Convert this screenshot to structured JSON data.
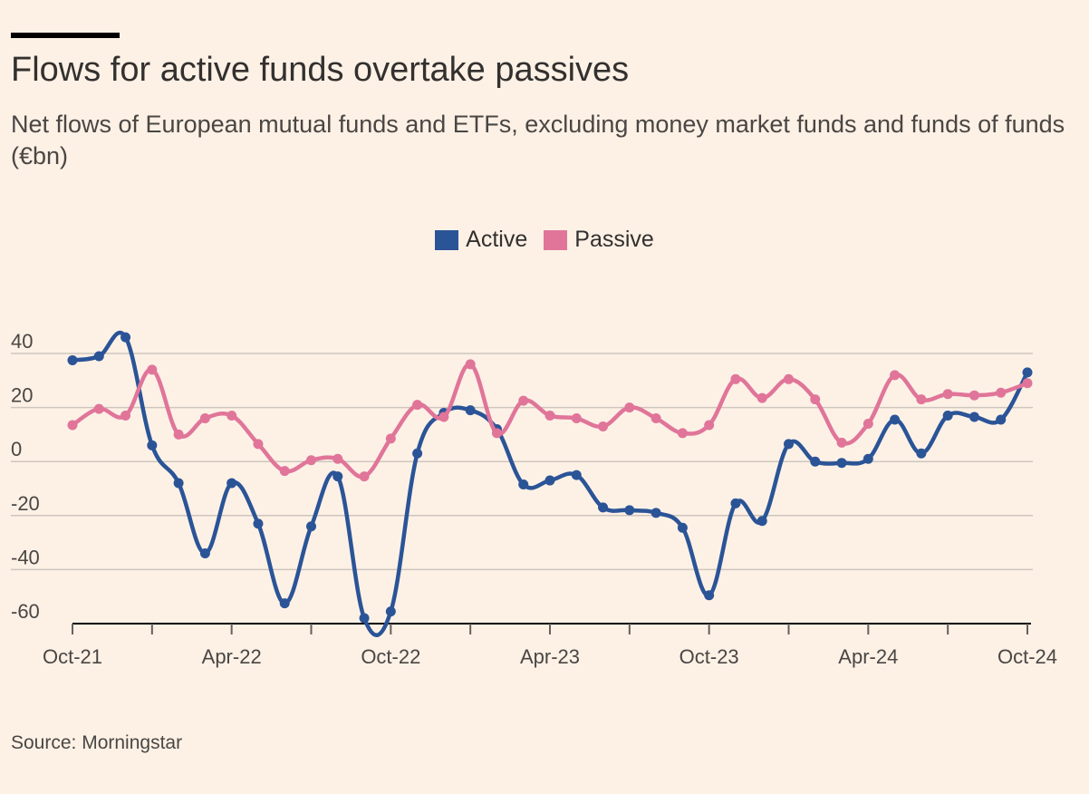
{
  "title": "Flows for active funds overtake passives",
  "subtitle": "Net flows of European mutual funds and ETFs, excluding money market funds and funds of funds (€bn)",
  "source": "Source: Morningstar",
  "legend": [
    {
      "label": "Active",
      "color": "#2B5497"
    },
    {
      "label": "Passive",
      "color": "#E07599"
    }
  ],
  "chart_data": {
    "type": "line",
    "title": "Flows for active funds overtake passives",
    "ylim": [
      -60,
      40
    ],
    "yticks": [
      -60,
      -40,
      -20,
      0,
      20,
      40
    ],
    "xlim": [
      0,
      36
    ],
    "xticks": [
      {
        "index": 0,
        "label": "Oct-21"
      },
      {
        "index": 3,
        "label": ""
      },
      {
        "index": 6,
        "label": "Apr-22"
      },
      {
        "index": 9,
        "label": ""
      },
      {
        "index": 12,
        "label": "Oct-22"
      },
      {
        "index": 15,
        "label": ""
      },
      {
        "index": 18,
        "label": "Apr-23"
      },
      {
        "index": 21,
        "label": ""
      },
      {
        "index": 24,
        "label": "Oct-23"
      },
      {
        "index": 27,
        "label": ""
      },
      {
        "index": 30,
        "label": "Apr-24"
      },
      {
        "index": 33,
        "label": ""
      },
      {
        "index": 36,
        "label": "Oct-24"
      }
    ],
    "x": [
      "Oct-21",
      "Nov-21",
      "Dec-21",
      "Jan-22",
      "Feb-22",
      "Mar-22",
      "Apr-22",
      "May-22",
      "Jun-22",
      "Jul-22",
      "Aug-22",
      "Sep-22",
      "Oct-22",
      "Nov-22",
      "Dec-22",
      "Jan-23",
      "Feb-23",
      "Mar-23",
      "Apr-23",
      "May-23",
      "Jun-23",
      "Jul-23",
      "Aug-23",
      "Sep-23",
      "Oct-23",
      "Nov-23",
      "Dec-23",
      "Jan-24",
      "Feb-24",
      "Mar-24",
      "Apr-24",
      "May-24",
      "Jun-24",
      "Jul-24",
      "Aug-24",
      "Sep-24",
      "Oct-24"
    ],
    "series": [
      {
        "name": "Active",
        "color": "#2B5497",
        "values": [
          37.5,
          39,
          46,
          6,
          -8,
          -34,
          -8,
          -23,
          -52.5,
          -24,
          -5.5,
          -58,
          -55.5,
          3,
          18,
          19,
          12,
          -8.5,
          -7,
          -5,
          -17,
          -18,
          -19,
          -24.5,
          -49.5,
          -15.5,
          -22,
          6.5,
          0,
          -0.5,
          1,
          15.5,
          3,
          17,
          16.5,
          15.5,
          33
        ]
      },
      {
        "name": "Passive",
        "color": "#E07599",
        "values": [
          13.5,
          19.5,
          17,
          34,
          10,
          16,
          17,
          6.5,
          -3.5,
          0.5,
          1,
          -5.5,
          8.5,
          21,
          16.5,
          36,
          10.5,
          22.5,
          17,
          16,
          13,
          20,
          16,
          10.5,
          13.5,
          30.5,
          23.5,
          30.5,
          23,
          7,
          14,
          32,
          23,
          25,
          24.5,
          25.5,
          29
        ]
      }
    ],
    "grid": true,
    "legend_position": "top-center"
  }
}
